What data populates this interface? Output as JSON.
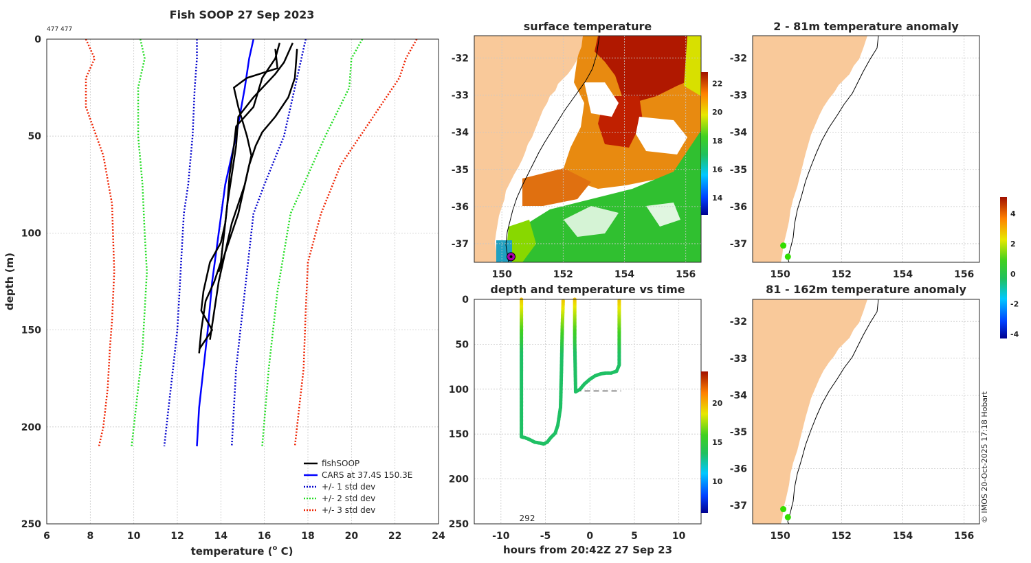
{
  "colors": {
    "land": "#f9c99a",
    "fish": "#000000",
    "cars": "#0000ff",
    "std1": "#0000cc",
    "std2": "#22dd22",
    "std3": "#ee2200",
    "dot": "#33dd00",
    "station": "#aa00aa"
  },
  "chart_data": [
    {
      "id": "profile",
      "type": "line",
      "title": "Fish SOOP 27 Sep 2023",
      "id_label": "477 477",
      "xlabel": "temperature (",
      "xlabel_sup": "o",
      "xlabel_end": " C)",
      "ylabel": "depth (m)",
      "xlim": [
        6,
        24
      ],
      "ylim": [
        250,
        0
      ],
      "xticks": [
        6,
        8,
        10,
        12,
        14,
        16,
        18,
        20,
        22,
        24
      ],
      "yticks": [
        0,
        50,
        100,
        150,
        200,
        250
      ],
      "legend_position": "bottom-right",
      "legend": [
        "fishSOOP",
        "CARS at 37.4S 150.3E",
        "+/- 1 std dev",
        "+/- 2 std dev",
        "+/- 3 std dev"
      ],
      "fish_series": [
        {
          "name": "fishSOOP",
          "temps": [
            16.7,
            16.5,
            15.9,
            15.5,
            14.7,
            14.6,
            14.4,
            14.3,
            14.2,
            14.1,
            14.0,
            13.7,
            13.3,
            13.1,
            13.0
          ],
          "depths": [
            2,
            10,
            20,
            35,
            45,
            55,
            70,
            85,
            95,
            105,
            115,
            125,
            135,
            150,
            162
          ]
        },
        {
          "name": "fishSOOP",
          "temps": [
            17.3,
            16.9,
            16.5,
            15.5,
            14.8,
            14.7,
            14.5,
            14.3,
            14.2,
            14.0,
            13.5,
            13.2,
            13.1,
            13.6,
            13.3,
            13.0
          ],
          "depths": [
            2,
            12,
            18,
            30,
            40,
            55,
            70,
            85,
            95,
            105,
            115,
            130,
            140,
            150,
            155,
            160
          ]
        },
        {
          "name": "fishSOOP",
          "temps": [
            17.5,
            17.4,
            17.1,
            16.5,
            15.9,
            15.6,
            15.3,
            15.1,
            14.8,
            14.5,
            14.3,
            14.1,
            13.9,
            13.7,
            13.5
          ],
          "depths": [
            5,
            20,
            30,
            40,
            48,
            55,
            65,
            75,
            85,
            95,
            105,
            115,
            125,
            140,
            155
          ]
        },
        {
          "name": "fishSOOP",
          "temps": [
            16.5,
            16.6,
            15.2,
            14.6,
            14.8,
            15.2,
            15.4,
            15.2,
            15.0,
            14.8,
            14.5,
            14.2,
            13.9
          ],
          "depths": [
            5,
            15,
            20,
            25,
            35,
            50,
            60,
            70,
            80,
            90,
            100,
            110,
            120
          ]
        }
      ],
      "cars": {
        "temps": [
          15.5,
          15.3,
          15.1,
          14.7,
          14.2,
          13.9,
          13.6,
          13.4,
          13.2,
          13.0,
          12.9
        ],
        "depths": [
          0,
          10,
          25,
          50,
          75,
          100,
          125,
          150,
          170,
          190,
          210
        ]
      },
      "std_lines": [
        {
          "name": "+/- 1 std dev",
          "colorKey": "std1",
          "temps": [
            12.9,
            12.9,
            12.8,
            12.7,
            12.5,
            12.3,
            12.2,
            12.1,
            12.0,
            11.8,
            11.6,
            11.4
          ],
          "depths": [
            0,
            10,
            25,
            50,
            75,
            90,
            110,
            130,
            150,
            170,
            190,
            210
          ]
        },
        {
          "name": "+/- 1 std dev",
          "colorKey": "std1",
          "temps": [
            17.9,
            17.7,
            17.4,
            16.9,
            16.0,
            15.5,
            15.3,
            15.1,
            14.9,
            14.7,
            14.5
          ],
          "depths": [
            0,
            10,
            25,
            50,
            75,
            90,
            110,
            130,
            150,
            170,
            210
          ]
        },
        {
          "name": "+/- 2 std dev",
          "colorKey": "std2",
          "temps": [
            10.3,
            10.5,
            10.2,
            10.2,
            10.4,
            10.5,
            10.6,
            10.5,
            10.4,
            10.2,
            9.9
          ],
          "depths": [
            0,
            10,
            25,
            50,
            75,
            100,
            120,
            140,
            160,
            180,
            210
          ]
        },
        {
          "name": "+/- 2 std dev",
          "colorKey": "std2",
          "temps": [
            20.5,
            20.0,
            19.9,
            18.8,
            17.8,
            17.2,
            16.9,
            16.6,
            16.4,
            16.2,
            15.9
          ],
          "depths": [
            0,
            10,
            25,
            50,
            75,
            90,
            110,
            130,
            150,
            170,
            210
          ]
        },
        {
          "name": "+/- 3 std dev",
          "colorKey": "std3",
          "temps": [
            7.8,
            8.2,
            7.8,
            7.8,
            8.6,
            9.0,
            9.1,
            9.0,
            8.9,
            8.8,
            8.6,
            8.4
          ],
          "depths": [
            0,
            10,
            20,
            35,
            60,
            85,
            120,
            145,
            160,
            180,
            200,
            210
          ]
        },
        {
          "name": "+/- 3 std dev",
          "colorKey": "std3",
          "temps": [
            23.0,
            22.5,
            22.2,
            21.0,
            19.5,
            18.6,
            18.0,
            17.9,
            17.8,
            17.6,
            17.4
          ],
          "depths": [
            0,
            10,
            20,
            40,
            65,
            90,
            115,
            140,
            170,
            190,
            210
          ]
        }
      ]
    },
    {
      "id": "sst",
      "type": "heatmap",
      "title": "surface temperature",
      "xlim": [
        149.1,
        156.5
      ],
      "ylim": [
        -37.5,
        -31.4
      ],
      "xticks": [
        150,
        152,
        154,
        156
      ],
      "yticks": [
        -32,
        -33,
        -34,
        -35,
        -36,
        -37
      ],
      "colorbar": {
        "range": [
          12.8,
          22.8
        ],
        "ticks": [
          14,
          16,
          18,
          20,
          22
        ]
      },
      "station": {
        "lon": 150.3,
        "lat": -37.35
      }
    },
    {
      "id": "timeseries",
      "type": "scatter",
      "title": "depth and temperature vs time",
      "xlabel": "hours from 20:42Z 27 Sep 23",
      "xlim": [
        -13,
        12.5
      ],
      "ylim": [
        250,
        0
      ],
      "xticks": [
        -10,
        -5,
        0,
        5,
        10
      ],
      "yticks": [
        0,
        50,
        100,
        150,
        200,
        250
      ],
      "annotation": "292",
      "colorbar": {
        "range": [
          6,
          24
        ],
        "ticks": [
          10,
          15,
          20
        ]
      },
      "track": [
        {
          "h": -7.7,
          "d": 0
        },
        {
          "h": -7.7,
          "d": 50
        },
        {
          "h": -7.7,
          "d": 100
        },
        {
          "h": -7.7,
          "d": 153
        },
        {
          "h": -7.3,
          "d": 154
        },
        {
          "h": -6.8,
          "d": 156
        },
        {
          "h": -6.2,
          "d": 159
        },
        {
          "h": -5.6,
          "d": 160
        },
        {
          "h": -5.2,
          "d": 161
        },
        {
          "h": -4.8,
          "d": 159
        },
        {
          "h": -4.4,
          "d": 154
        },
        {
          "h": -3.9,
          "d": 149
        },
        {
          "h": -3.6,
          "d": 140
        },
        {
          "h": -3.3,
          "d": 120
        },
        {
          "h": -3.2,
          "d": 80
        },
        {
          "h": -3.1,
          "d": 30
        },
        {
          "h": -3.0,
          "d": 0
        },
        {
          "h": -1.7,
          "d": 0
        },
        {
          "h": -1.7,
          "d": 50
        },
        {
          "h": -1.6,
          "d": 103
        },
        {
          "h": -1.1,
          "d": 100
        },
        {
          "h": -0.6,
          "d": 94
        },
        {
          "h": 0.0,
          "d": 89
        },
        {
          "h": 0.6,
          "d": 85
        },
        {
          "h": 1.2,
          "d": 83
        },
        {
          "h": 1.8,
          "d": 82
        },
        {
          "h": 2.4,
          "d": 82
        },
        {
          "h": 3.0,
          "d": 80
        },
        {
          "h": 3.3,
          "d": 73
        },
        {
          "h": 3.3,
          "d": 40
        },
        {
          "h": 3.3,
          "d": 0
        }
      ],
      "bottom_line": {
        "h0": -1.6,
        "h1": 3.5,
        "d": 102
      }
    },
    {
      "id": "anom1",
      "type": "scatter",
      "title": "2 - 81m temperature anomaly",
      "xlim": [
        149.1,
        156.5
      ],
      "ylim": [
        -37.5,
        -31.4
      ],
      "xticks": [
        150,
        152,
        154,
        156
      ],
      "yticks": [
        -32,
        -33,
        -34,
        -35,
        -36,
        -37
      ],
      "points": [
        {
          "lon": 150.1,
          "lat": -37.05
        },
        {
          "lon": 150.25,
          "lat": -37.35
        }
      ]
    },
    {
      "id": "anom2",
      "type": "scatter",
      "title": "81 - 162m temperature anomaly",
      "xlim": [
        149.1,
        156.5
      ],
      "ylim": [
        -37.5,
        -31.4
      ],
      "xticks": [
        150,
        152,
        154,
        156
      ],
      "yticks": [
        -32,
        -33,
        -34,
        -35,
        -36,
        -37
      ],
      "points": [
        {
          "lon": 150.1,
          "lat": -37.1
        },
        {
          "lon": 150.25,
          "lat": -37.32
        }
      ]
    },
    {
      "id": "anom_colorbar",
      "type": "heatmap",
      "range": [
        -4.3,
        5.1
      ],
      "ticks": [
        -4,
        -2,
        0,
        2,
        4
      ]
    }
  ],
  "credit": "© IMOS 20-Oct-2025 17:18 Hobart"
}
